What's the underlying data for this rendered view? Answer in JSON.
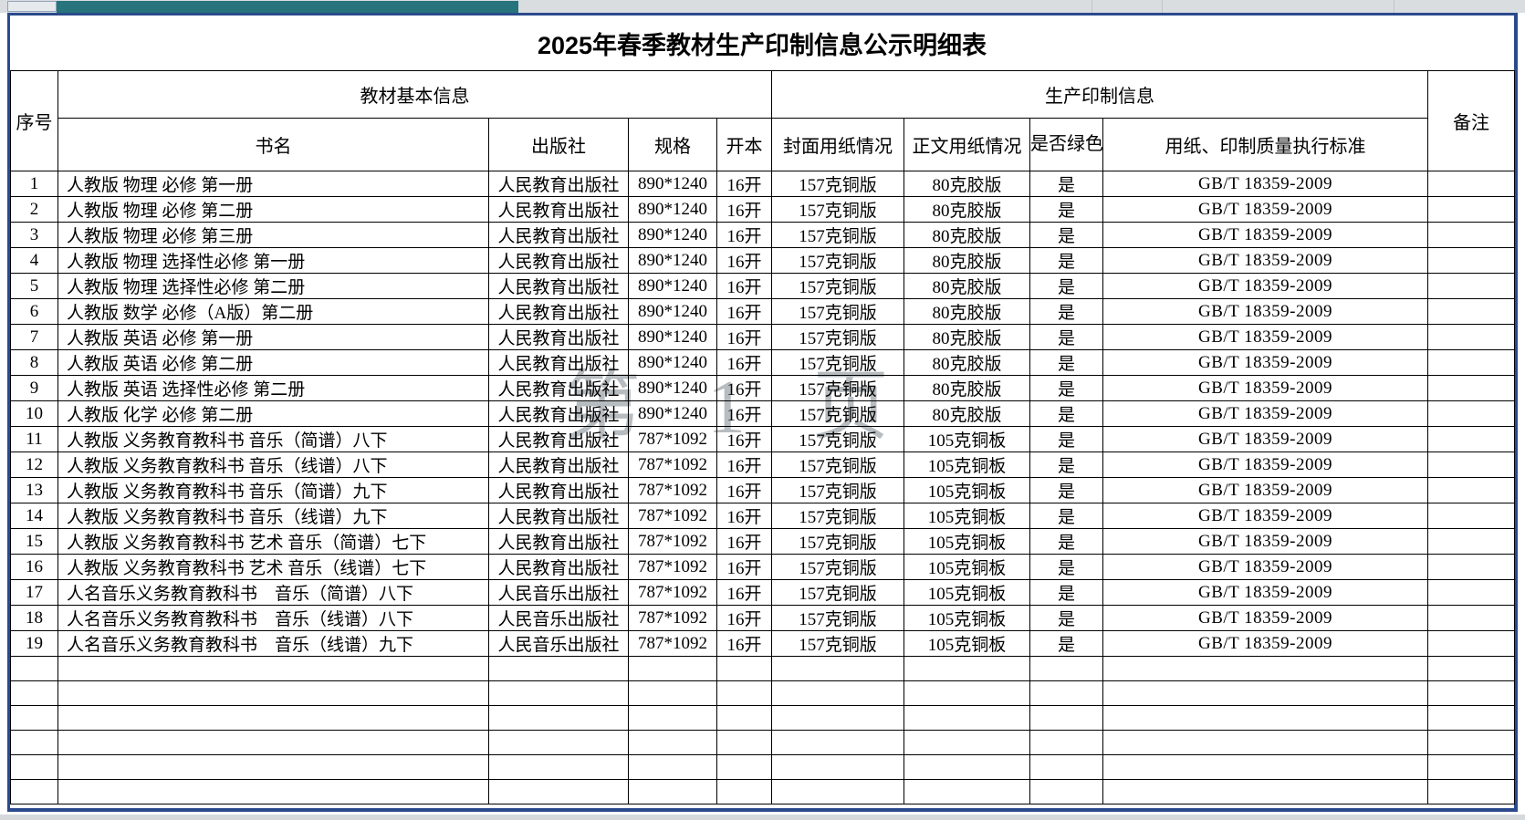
{
  "title": "2025年春季教材生产印制信息公示明细表",
  "watermark": "第 1 页",
  "colors": {
    "outer_border": "#2b4a8c",
    "teal_bar": "#27747c",
    "margin_bg": "#d9dde0",
    "grid_line": "#000000",
    "watermark_gray": "#7e868d"
  },
  "table": {
    "header": {
      "serial": "序号",
      "basic_group": "教材基本信息",
      "production_group": "生产印制信息",
      "remark": "备注",
      "columns": [
        "书名",
        "出版社",
        "规格",
        "开本",
        "封面用纸情况",
        "正文用纸情况",
        "是否绿色印刷",
        "用纸、印制质量执行标准"
      ]
    },
    "rows": [
      {
        "no": "1",
        "name": "人教版 物理 必修 第一册",
        "publisher": "人民教育出版社",
        "spec": "890*1240",
        "format": "16开",
        "cover_paper": "157克铜版",
        "body_paper": "80克胶版",
        "green": "是",
        "standard": "GB/T 18359-2009",
        "remark": ""
      },
      {
        "no": "2",
        "name": "人教版 物理 必修 第二册",
        "publisher": "人民教育出版社",
        "spec": "890*1240",
        "format": "16开",
        "cover_paper": "157克铜版",
        "body_paper": "80克胶版",
        "green": "是",
        "standard": "GB/T 18359-2009",
        "remark": ""
      },
      {
        "no": "3",
        "name": "人教版 物理 必修 第三册",
        "publisher": "人民教育出版社",
        "spec": "890*1240",
        "format": "16开",
        "cover_paper": "157克铜版",
        "body_paper": "80克胶版",
        "green": "是",
        "standard": "GB/T 18359-2009",
        "remark": ""
      },
      {
        "no": "4",
        "name": "人教版 物理 选择性必修 第一册",
        "publisher": "人民教育出版社",
        "spec": "890*1240",
        "format": "16开",
        "cover_paper": "157克铜版",
        "body_paper": "80克胶版",
        "green": "是",
        "standard": "GB/T 18359-2009",
        "remark": ""
      },
      {
        "no": "5",
        "name": "人教版 物理 选择性必修 第二册",
        "publisher": "人民教育出版社",
        "spec": "890*1240",
        "format": "16开",
        "cover_paper": "157克铜版",
        "body_paper": "80克胶版",
        "green": "是",
        "standard": "GB/T 18359-2009",
        "remark": ""
      },
      {
        "no": "6",
        "name": "人教版 数学 必修（A版）第二册",
        "publisher": "人民教育出版社",
        "spec": "890*1240",
        "format": "16开",
        "cover_paper": "157克铜版",
        "body_paper": "80克胶版",
        "green": "是",
        "standard": "GB/T 18359-2009",
        "remark": ""
      },
      {
        "no": "7",
        "name": "人教版 英语 必修 第一册",
        "publisher": "人民教育出版社",
        "spec": "890*1240",
        "format": "16开",
        "cover_paper": "157克铜版",
        "body_paper": "80克胶版",
        "green": "是",
        "standard": "GB/T 18359-2009",
        "remark": ""
      },
      {
        "no": "8",
        "name": "人教版 英语 必修 第二册",
        "publisher": "人民教育出版社",
        "spec": "890*1240",
        "format": "16开",
        "cover_paper": "157克铜版",
        "body_paper": "80克胶版",
        "green": "是",
        "standard": "GB/T 18359-2009",
        "remark": ""
      },
      {
        "no": "9",
        "name": "人教版 英语 选择性必修 第二册",
        "publisher": "人民教育出版社",
        "spec": "890*1240",
        "format": "16开",
        "cover_paper": "157克铜版",
        "body_paper": "80克胶版",
        "green": "是",
        "standard": "GB/T 18359-2009",
        "remark": ""
      },
      {
        "no": "10",
        "name": "人教版 化学 必修 第二册",
        "publisher": "人民教育出版社",
        "spec": "890*1240",
        "format": "16开",
        "cover_paper": "157克铜版",
        "body_paper": "80克胶版",
        "green": "是",
        "standard": "GB/T 18359-2009",
        "remark": ""
      },
      {
        "no": "11",
        "name": "人教版 义务教育教科书 音乐（简谱）八下",
        "publisher": "人民教育出版社",
        "spec": "787*1092",
        "format": "16开",
        "cover_paper": "157克铜版",
        "body_paper": "105克铜板",
        "green": "是",
        "standard": "GB/T 18359-2009",
        "remark": ""
      },
      {
        "no": "12",
        "name": "人教版 义务教育教科书 音乐（线谱）八下",
        "publisher": "人民教育出版社",
        "spec": "787*1092",
        "format": "16开",
        "cover_paper": "157克铜版",
        "body_paper": "105克铜板",
        "green": "是",
        "standard": "GB/T 18359-2009",
        "remark": ""
      },
      {
        "no": "13",
        "name": "人教版 义务教育教科书 音乐（简谱）九下",
        "publisher": "人民教育出版社",
        "spec": "787*1092",
        "format": "16开",
        "cover_paper": "157克铜版",
        "body_paper": "105克铜板",
        "green": "是",
        "standard": "GB/T 18359-2009",
        "remark": ""
      },
      {
        "no": "14",
        "name": "人教版 义务教育教科书 音乐（线谱）九下",
        "publisher": "人民教育出版社",
        "spec": "787*1092",
        "format": "16开",
        "cover_paper": "157克铜版",
        "body_paper": "105克铜板",
        "green": "是",
        "standard": "GB/T 18359-2009",
        "remark": ""
      },
      {
        "no": "15",
        "name": "人教版 义务教育教科书 艺术 音乐（简谱）七下",
        "publisher": "人民教育出版社",
        "spec": "787*1092",
        "format": "16开",
        "cover_paper": "157克铜版",
        "body_paper": "105克铜板",
        "green": "是",
        "standard": "GB/T 18359-2009",
        "remark": ""
      },
      {
        "no": "16",
        "name": "人教版 义务教育教科书 艺术 音乐（线谱）七下",
        "publisher": "人民教育出版社",
        "spec": "787*1092",
        "format": "16开",
        "cover_paper": "157克铜版",
        "body_paper": "105克铜板",
        "green": "是",
        "standard": "GB/T 18359-2009",
        "remark": ""
      },
      {
        "no": "17",
        "name": "人名音乐义务教育教科书　音乐（简谱）八下",
        "publisher": "人民音乐出版社",
        "spec": "787*1092",
        "format": "16开",
        "cover_paper": "157克铜版",
        "body_paper": "105克铜板",
        "green": "是",
        "standard": "GB/T 18359-2009",
        "remark": ""
      },
      {
        "no": "18",
        "name": "人名音乐义务教育教科书　音乐（线谱）八下",
        "publisher": "人民音乐出版社",
        "spec": "787*1092",
        "format": "16开",
        "cover_paper": "157克铜版",
        "body_paper": "105克铜板",
        "green": "是",
        "standard": "GB/T 18359-2009",
        "remark": ""
      },
      {
        "no": "19",
        "name": "人名音乐义务教育教科书　音乐（线谱）九下",
        "publisher": "人民音乐出版社",
        "spec": "787*1092",
        "format": "16开",
        "cover_paper": "157克铜版",
        "body_paper": "105克铜板",
        "green": "是",
        "standard": "GB/T 18359-2009",
        "remark": ""
      }
    ],
    "empty_rows": 6
  }
}
